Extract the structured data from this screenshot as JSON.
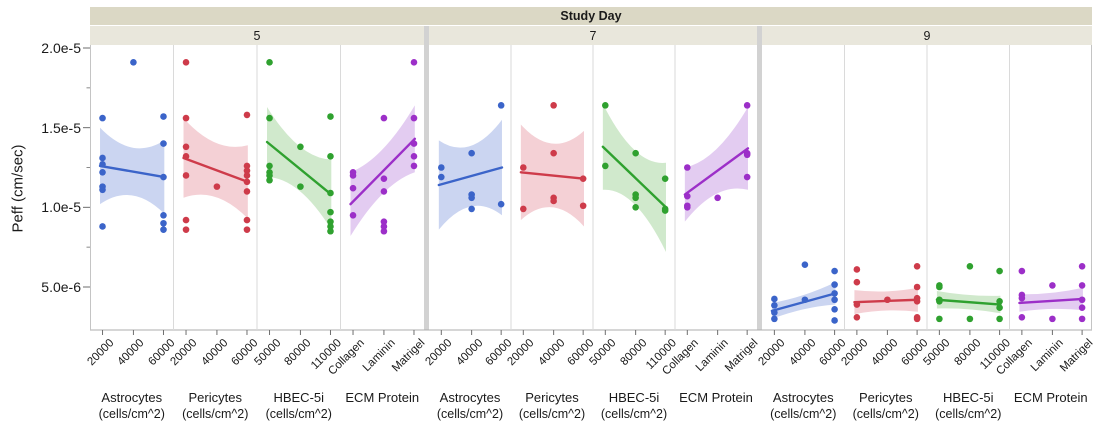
{
  "header": {
    "title": "Study Day"
  },
  "chart_data": {
    "type": "scatter",
    "title": "Study Day",
    "description": "Trellis scatter plot of Peff vs culture conditions with linear fits and confidence bands, grouped by Study Day",
    "yaxis": {
      "label": "Peff (cm/sec)",
      "ticks": [
        {
          "value": 2e-05,
          "label": "2.0e-5"
        },
        {
          "value": 1.5e-05,
          "label": "1.5e-5"
        },
        {
          "value": 1e-05,
          "label": "1.0e-5"
        },
        {
          "value": 5e-06,
          "label": "5.0e-6"
        }
      ],
      "minor_ticks": [
        1.75e-05,
        1.25e-05,
        7.5e-06
      ],
      "ylim": [
        2.3e-06,
        2.02e-05
      ],
      "grid": false
    },
    "factors": [
      {
        "name": "Astrocytes",
        "unit": "(cells/cm^2)",
        "levels": [
          "20000",
          "40000",
          "60000"
        ],
        "color": "#3b64c9",
        "band_color": "#cbd5f1"
      },
      {
        "name": "Pericytes",
        "unit": "(cells/cm^2)",
        "levels": [
          "20000",
          "40000",
          "60000"
        ],
        "color": "#ce3b4a",
        "band_color": "#f4d0d5"
      },
      {
        "name": "HBEC-5i",
        "unit": "(cells/cm^2)",
        "levels": [
          "50000",
          "80000",
          "110000"
        ],
        "color": "#2fa12f",
        "band_color": "#d0e9cc"
      },
      {
        "name": "ECM Protein",
        "unit": "",
        "levels": [
          "Collagen",
          "Laminin",
          "Matrigel"
        ],
        "color": "#9c2fc8",
        "band_color": "#e3ccf1"
      }
    ],
    "days": [
      {
        "label": "5",
        "panels": [
          {
            "factor": "Astrocytes",
            "points_by_level": [
              [
                1.56e-05,
                1.31e-05,
                1.27e-05,
                1.22e-05,
                1.13e-05,
                1.11e-05,
                8.8e-06
              ],
              [
                1.91e-05
              ],
              [
                1.57e-05,
                1.4e-05,
                1.19e-05,
                9.5e-06,
                9e-06,
                8.6e-06
              ]
            ],
            "fit_line": [
              1.26e-05,
              1.19e-05
            ],
            "band_halfwidth": [
              2.4e-06,
              1.5e-06,
              2.3e-06
            ]
          },
          {
            "factor": "Pericytes",
            "points_by_level": [
              [
                1.91e-05,
                1.56e-05,
                1.38e-05,
                1.32e-05,
                1.2e-05,
                9.2e-06,
                8.6e-06
              ],
              [
                1.13e-05
              ],
              [
                1.58e-05,
                1.26e-05,
                1.23e-05,
                1.2e-05,
                1.16e-05,
                1.1e-05,
                9.2e-06,
                8.6e-06
              ]
            ],
            "fit_line": [
              1.31e-05,
              1.16e-05
            ],
            "band_halfwidth": [
              2.5e-06,
              1.7e-06,
              2.3e-06
            ]
          },
          {
            "factor": "HBEC-5i",
            "points_by_level": [
              [
                1.91e-05,
                1.56e-05,
                1.26e-05,
                1.22e-05,
                1.2e-05,
                1.17e-05
              ],
              [
                1.38e-05,
                1.13e-05
              ],
              [
                1.57e-05,
                1.32e-05,
                1.09e-05,
                9.7e-06,
                9.1e-06,
                8.8e-06,
                8.5e-06
              ]
            ],
            "fit_line": [
              1.41e-05,
              1.08e-05
            ],
            "band_halfwidth": [
              2.2e-06,
              1.4e-06,
              2.2e-06
            ]
          },
          {
            "factor": "ECM Protein",
            "points_by_level": [
              [
                1.22e-05,
                1.2e-05,
                1.12e-05,
                9.5e-06
              ],
              [
                1.56e-05,
                1.18e-05,
                1.1e-05,
                9.1e-06,
                8.8e-06,
                8.5e-06
              ],
              [
                1.91e-05,
                1.56e-05,
                1.4e-05,
                1.32e-05,
                1.26e-05
              ]
            ],
            "fit_line": [
              1.02e-05,
              1.43e-05
            ],
            "band_halfwidth": [
              2e-06,
              1.4e-06,
              2.1e-06
            ]
          }
        ]
      },
      {
        "label": "7",
        "panels": [
          {
            "factor": "Astrocytes",
            "points_by_level": [
              [
                1.25e-05,
                1.19e-05
              ],
              [
                1.34e-05,
                1.08e-05,
                1.06e-05,
                9.9e-06
              ],
              [
                1.64e-05,
                1.02e-05
              ]
            ],
            "fit_line": [
              1.14e-05,
              1.25e-05
            ],
            "band_halfwidth": [
              2.8e-06,
              1.9e-06,
              3e-06
            ]
          },
          {
            "factor": "Pericytes",
            "points_by_level": [
              [
                1.25e-05,
                9.9e-06
              ],
              [
                1.64e-05,
                1.34e-05,
                1.06e-05,
                1.04e-05
              ],
              [
                1.18e-05,
                1.01e-05
              ]
            ],
            "fit_line": [
              1.22e-05,
              1.18e-05
            ],
            "band_halfwidth": [
              3e-06,
              2e-06,
              3e-06
            ]
          },
          {
            "factor": "HBEC-5i",
            "points_by_level": [
              [
                1.64e-05,
                1.26e-05
              ],
              [
                1.34e-05,
                1.08e-05,
                1.06e-05,
                1e-05
              ],
              [
                1.18e-05,
                9.9e-06,
                9.8e-06
              ]
            ],
            "fit_line": [
              1.38e-05,
              1e-05
            ],
            "band_halfwidth": [
              2.7e-06,
              1.7e-06,
              2.8e-06
            ]
          },
          {
            "factor": "ECM Protein",
            "points_by_level": [
              [
                1.25e-05,
                1.07e-05,
                1.01e-05,
                1e-05
              ],
              [
                1.06e-05
              ],
              [
                1.64e-05,
                1.34e-05,
                1.33e-05,
                1.19e-05
              ]
            ],
            "fit_line": [
              1.08e-05,
              1.37e-05
            ],
            "band_halfwidth": [
              1.7e-06,
              1.4e-06,
              2.6e-06
            ]
          }
        ]
      },
      {
        "label": "9",
        "panels": [
          {
            "factor": "Astrocytes",
            "points_by_level": [
              [
                4.25e-06,
                3.85e-06,
                3.4e-06,
                3e-06
              ],
              [
                6.4e-06,
                4.2e-06
              ],
              [
                6e-06,
                5.15e-06,
                4.6e-06,
                4.2e-06,
                3.6e-06,
                2.9e-06
              ]
            ],
            "fit_line": [
              3.5e-06,
              4.6e-06
            ],
            "band_halfwidth": [
              5e-07,
              4.5e-07,
              7e-07
            ]
          },
          {
            "factor": "Pericytes",
            "points_by_level": [
              [
                6.1e-06,
                5.3e-06,
                3.9e-06,
                3.1e-06
              ],
              [
                4.2e-06
              ],
              [
                6.3e-06,
                5e-06,
                4.3e-06,
                4.1e-06,
                3.1e-06,
                3e-06
              ]
            ],
            "fit_line": [
              4.05e-06,
              4.2e-06
            ],
            "band_halfwidth": [
              7.5e-07,
              6e-07,
              7.5e-07
            ]
          },
          {
            "factor": "HBEC-5i",
            "points_by_level": [
              [
                5.1e-06,
                5e-06,
                4.2e-06,
                4.1e-06,
                3e-06
              ],
              [
                6.3e-06,
                3e-06
              ],
              [
                6e-06,
                4.1e-06,
                3.7e-06,
                3e-06
              ]
            ],
            "fit_line": [
              4.2e-06,
              3.9e-06
            ],
            "band_halfwidth": [
              5.5e-07,
              4.5e-07,
              5.5e-07
            ]
          },
          {
            "factor": "ECM Protein",
            "points_by_level": [
              [
                6e-06,
                4.5e-06,
                4.3e-06,
                3.1e-06
              ],
              [
                5.1e-06,
                3e-06
              ],
              [
                6.3e-06,
                5.1e-06,
                4.2e-06,
                3.7e-06,
                3e-06
              ]
            ],
            "fit_line": [
              4e-06,
              4.25e-06
            ],
            "band_halfwidth": [
              5.5e-07,
              5e-07,
              7e-07
            ]
          }
        ]
      }
    ]
  }
}
